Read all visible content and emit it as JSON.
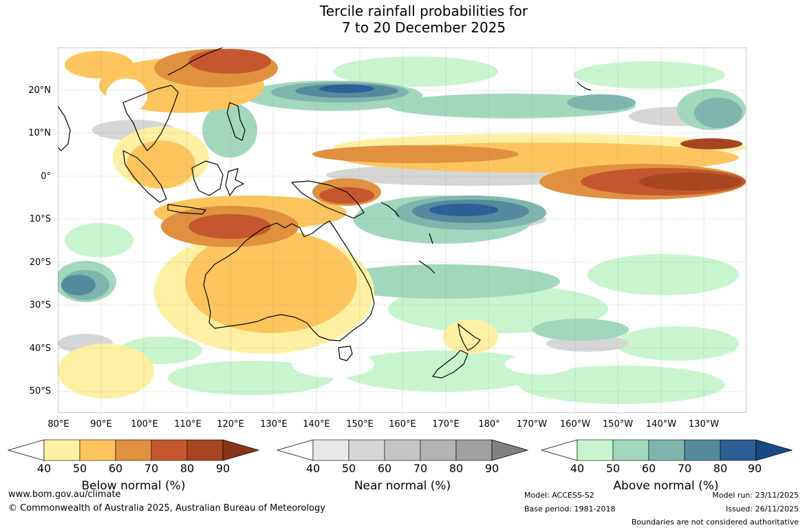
{
  "title": {
    "line1": "Tercile rainfall probabilities for",
    "line2": "7 to 20 December 2025"
  },
  "latitude_labels": [
    "20°N",
    "10°N",
    "0°",
    "10°S",
    "20°S",
    "30°S",
    "40°S",
    "50°S"
  ],
  "longitude_labels": [
    "80°E",
    "90°E",
    "100°E",
    "110°E",
    "120°E",
    "130°E",
    "140°E",
    "150°E",
    "160°E",
    "170°E",
    "180°",
    "170°W",
    "160°W",
    "150°W",
    "140°W",
    "130°W"
  ],
  "colorbars": [
    {
      "label": "Below normal (%)",
      "ticks": [
        "40",
        "50",
        "60",
        "70",
        "80",
        "90"
      ],
      "colors": [
        "#ffffff",
        "#fff0a3",
        "#fec55f",
        "#e0903f",
        "#c4572e",
        "#a6451f",
        "#8a3418"
      ]
    },
    {
      "label": "Near normal (%)",
      "ticks": [
        "40",
        "50",
        "60",
        "70",
        "80",
        "90"
      ],
      "colors": [
        "#ffffff",
        "#e8e8e8",
        "#d6d6d6",
        "#c4c4c4",
        "#b3b3b3",
        "#a1a1a1",
        "#808080"
      ]
    },
    {
      "label": "Above normal (%)",
      "ticks": [
        "40",
        "50",
        "60",
        "70",
        "80",
        "90"
      ],
      "colors": [
        "#ffffff",
        "#c8f5cd",
        "#a2d7bd",
        "#7fb5ad",
        "#55899e",
        "#2c5f95",
        "#174a86"
      ]
    }
  ],
  "footer": {
    "website": "www.bom.gov.au/climate",
    "copyright": "© Commonwealth of Australia 2025, Australian Bureau of Meteorology",
    "model": "Model: ACCESS-S2",
    "base_period": "Base period: 1981-2018",
    "model_run": "Model run: 23/11/2025",
    "issued": "Issued: 26/11/2025",
    "boundaries": "Boundaries are not considered authoritative"
  },
  "palette": {
    "below_light": "#fff0a3",
    "below_mid": "#fec55f",
    "below_dark": "#e0903f",
    "below_darker": "#c4572e",
    "below_darkest": "#a6451f",
    "near_light": "#e8e8e8",
    "near_mid": "#d0d0d0",
    "near_dark": "#b3b3b3",
    "above_light": "#c8f5cd",
    "above_mid": "#a2d7bd",
    "above_dark": "#7fb5ad",
    "above_darker": "#55899e",
    "above_darkest": "#2c5f95"
  }
}
